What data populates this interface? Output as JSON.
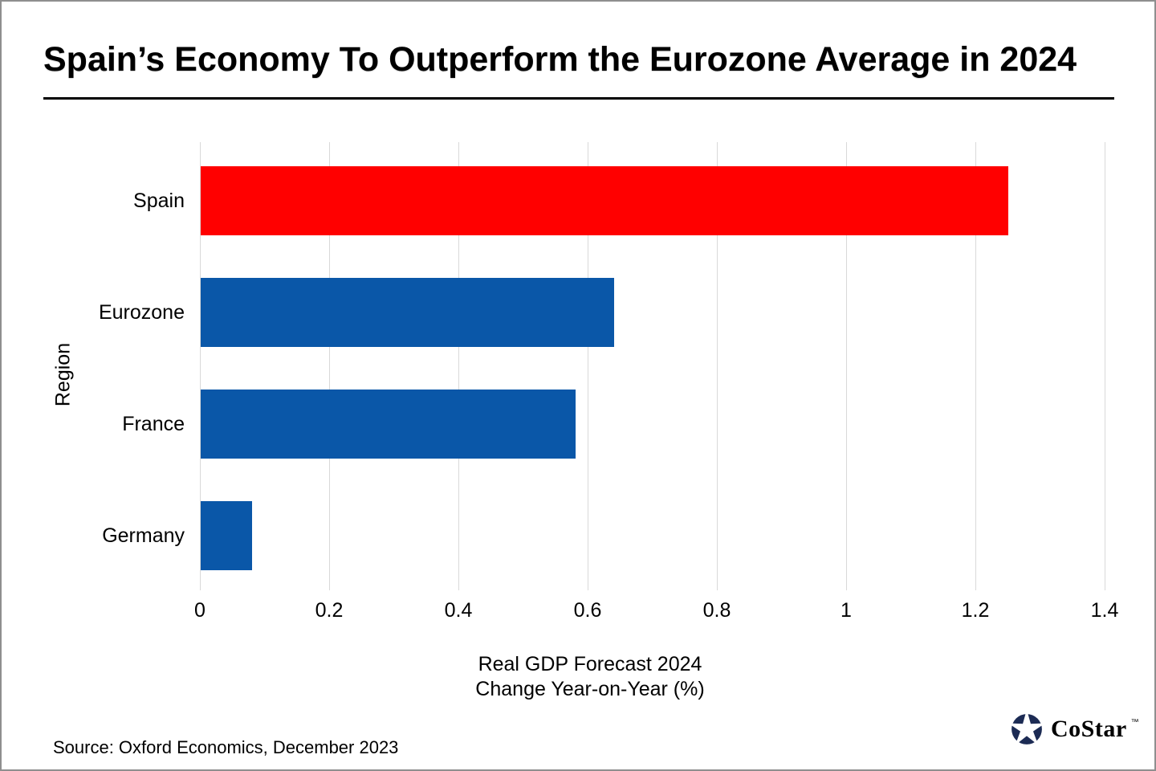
{
  "title": "Spain’s Economy To Outperform the Eurozone Average in 2024",
  "chart_data": {
    "type": "bar",
    "orientation": "horizontal",
    "categories": [
      "Spain",
      "Eurozone",
      "France",
      "Germany"
    ],
    "values": [
      1.25,
      0.64,
      0.58,
      0.08
    ],
    "bar_colors": [
      "#ff0000",
      "#0a57a8",
      "#0a57a8",
      "#0a57a8"
    ],
    "title": "Spain’s Economy To Outperform the Eurozone Average in 2024",
    "xlabel_line1": "Real GDP Forecast 2024",
    "xlabel_line2": "Change Year-on-Year (%)",
    "ylabel": "Region",
    "xlim": [
      0,
      1.4
    ],
    "xticks": [
      0,
      0.2,
      0.4,
      0.6,
      0.8,
      1,
      1.2,
      1.4
    ],
    "xtick_labels": [
      "0",
      "0.2",
      "0.4",
      "0.6",
      "0.8",
      "1",
      "1.2",
      "1.4"
    ],
    "grid": "vertical",
    "gridline_color": "#d9d9d9",
    "legend": "none"
  },
  "footer": {
    "source": "Source: Oxford Economics, December 2023",
    "logo": {
      "text": "CoStar",
      "tm": "™",
      "color": "#1c2b54",
      "icon": "costar-pinwheel-star-icon"
    }
  }
}
